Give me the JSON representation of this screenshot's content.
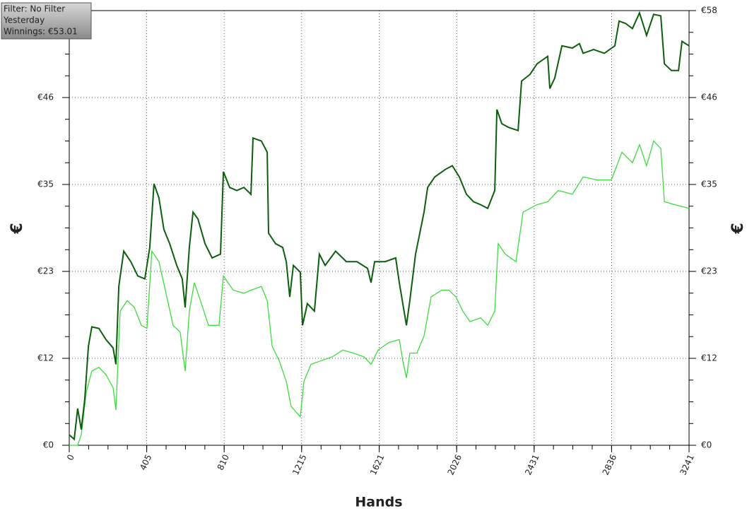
{
  "chart_data": {
    "type": "line",
    "annotations": [
      "Filter: No Filter",
      "Yesterday",
      "Winnings: €53.01"
    ],
    "xlabel": "Hands",
    "ylabel": "€",
    "y2label": "€",
    "xlim": [
      0,
      3241
    ],
    "xticks": [
      0,
      405,
      810,
      1215,
      1621,
      2026,
      2431,
      2836,
      3241
    ],
    "ylim": [
      0,
      58
    ],
    "yticks": [
      {
        "value": 0,
        "label": "€0"
      },
      {
        "value": 11.6,
        "label": "€12"
      },
      {
        "value": 23.2,
        "label": "€23"
      },
      {
        "value": 34.8,
        "label": "€35"
      },
      {
        "value": 46.4,
        "label": "€46"
      },
      {
        "value": 58,
        "label": "€58"
      }
    ],
    "grid": true,
    "series": [
      {
        "color": "#0b5e0b",
        "x": [
          0,
          26,
          44,
          63,
          81,
          100,
          118,
          155,
          192,
          229,
          244,
          259,
          285,
          322,
          358,
          395,
          421,
          443,
          469,
          495,
          525,
          562,
          591,
          606,
          628,
          647,
          673,
          710,
          747,
          791,
          806,
          839,
          876,
          913,
          950,
          961,
          1005,
          1035,
          1042,
          1079,
          1116,
          1135,
          1153,
          1172,
          1208,
          1220,
          1245,
          1282,
          1308,
          1338,
          1393,
          1449,
          1504,
          1560,
          1578,
          1597,
          1652,
          1707,
          1726,
          1763,
          1781,
          1811,
          1855,
          1874,
          1911,
          1966,
          2003,
          2040,
          2077,
          2114,
          2151,
          2188,
          2225,
          2236,
          2262,
          2299,
          2347,
          2365,
          2410,
          2446,
          2502,
          2513,
          2539,
          2576,
          2631,
          2668,
          2687,
          2742,
          2798,
          2853,
          2875,
          2908,
          2945,
          2982,
          3019,
          3056,
          3093,
          3112,
          3149,
          3186,
          3204,
          3241
        ],
        "values": [
          1.4,
          0.8,
          4.9,
          2.1,
          6.1,
          13.2,
          15.8,
          15.6,
          14.1,
          13.0,
          10.8,
          21.2,
          25.9,
          24.5,
          22.6,
          22.2,
          26.4,
          34.9,
          33.0,
          28.8,
          26.9,
          24.0,
          22.2,
          18.4,
          26.4,
          31.1,
          30.2,
          26.9,
          25.0,
          25.5,
          36.5,
          34.4,
          34.0,
          34.4,
          33.5,
          41.0,
          40.6,
          39.1,
          28.3,
          26.9,
          26.4,
          24.5,
          19.8,
          24.0,
          23.1,
          16.0,
          18.9,
          17.9,
          25.5,
          24.0,
          25.9,
          24.5,
          24.5,
          23.6,
          21.7,
          24.5,
          24.5,
          25.0,
          21.7,
          16.0,
          19.3,
          25.5,
          31.1,
          34.4,
          35.8,
          36.8,
          37.3,
          35.8,
          33.5,
          32.5,
          32.1,
          31.6,
          34.0,
          44.8,
          42.9,
          42.4,
          42.0,
          48.6,
          49.5,
          50.9,
          51.9,
          47.6,
          49.0,
          53.3,
          53.0,
          53.6,
          52.3,
          52.8,
          52.3,
          53.3,
          56.6,
          56.3,
          55.6,
          57.7,
          54.7,
          57.5,
          57.3,
          50.9,
          50.0,
          50.0,
          53.9,
          53.3
        ]
      },
      {
        "color": "#3ddc3d",
        "x": [
          0,
          44,
          63,
          89,
          118,
          155,
          192,
          229,
          244,
          266,
          303,
          340,
          377,
          406,
          432,
          469,
          506,
          543,
          580,
          606,
          628,
          654,
          691,
          728,
          783,
          806,
          857,
          913,
          950,
          1005,
          1035,
          1061,
          1098,
          1135,
          1160,
          1208,
          1227,
          1264,
          1319,
          1375,
          1430,
          1486,
          1541,
          1578,
          1615,
          1670,
          1726,
          1744,
          1763,
          1781,
          1818,
          1855,
          1892,
          1948,
          1985,
          2022,
          2058,
          2095,
          2151,
          2188,
          2225,
          2243,
          2280,
          2336,
          2373,
          2446,
          2502,
          2557,
          2631,
          2687,
          2761,
          2835,
          2890,
          2945,
          2982,
          3019,
          3056,
          3093,
          3112,
          3167,
          3241
        ],
        "values": [
          0,
          0,
          1.4,
          7.1,
          9.9,
          10.4,
          9.4,
          7.7,
          4.7,
          17.9,
          19.3,
          18.4,
          16.0,
          15.6,
          25.9,
          24.5,
          20.3,
          16.0,
          15.1,
          9.9,
          17.9,
          21.7,
          18.9,
          16.0,
          16.0,
          22.6,
          20.7,
          20.3,
          20.7,
          21.2,
          19.3,
          13.2,
          11.3,
          8.5,
          5.2,
          3.8,
          8.5,
          10.8,
          11.3,
          11.8,
          12.7,
          12.3,
          11.8,
          10.8,
          12.7,
          13.7,
          14.1,
          11.3,
          9.0,
          12.3,
          12.3,
          14.6,
          19.8,
          20.7,
          20.7,
          19.8,
          17.9,
          16.5,
          17.0,
          16.0,
          17.9,
          26.9,
          25.5,
          24.5,
          31.1,
          32.1,
          32.5,
          34.0,
          33.5,
          35.8,
          35.4,
          35.4,
          39.1,
          37.7,
          40.1,
          37.3,
          40.6,
          39.6,
          32.5,
          32.1,
          31.6
        ]
      }
    ]
  }
}
